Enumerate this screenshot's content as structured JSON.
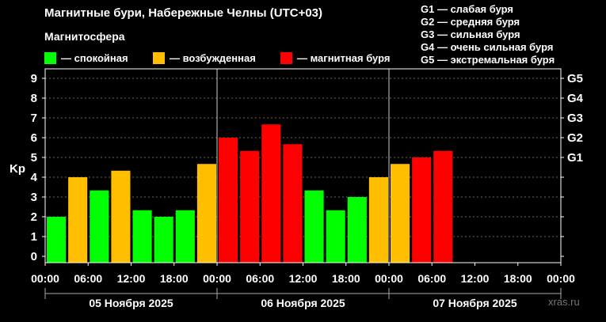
{
  "title": "Магнитные бури, Набережные Челны (UTC+03)",
  "subtitle": "Магнитосфера",
  "legend": [
    {
      "label": "— спокойная",
      "color": "#00ff00"
    },
    {
      "label": "— возбужденная",
      "color": "#ffbf00"
    },
    {
      "label": "— магнитная буря",
      "color": "#ff0000"
    }
  ],
  "g_legend": [
    "G1 — слабая буря",
    "G2 — средняя буря",
    "G3 — сильная буря",
    "G4 — очень сильная буря",
    "G5 — экстремальная буря"
  ],
  "watermark": "xras.ru",
  "chart_data": {
    "type": "bar",
    "ylabel": "Kp",
    "ylim": [
      0,
      9
    ],
    "yticks": [
      "0",
      "1",
      "2",
      "3",
      "4",
      "5",
      "6",
      "7",
      "8",
      "9"
    ],
    "right_ticks": [
      {
        "label": "G1",
        "kp": 5
      },
      {
        "label": "G2",
        "kp": 6
      },
      {
        "label": "G3",
        "kp": 7
      },
      {
        "label": "G4",
        "kp": 8
      },
      {
        "label": "G5",
        "kp": 9
      }
    ],
    "xtick_labels": [
      "00:00",
      "06:00",
      "12:00",
      "18:00",
      "00:00",
      "06:00",
      "12:00",
      "18:00",
      "00:00",
      "06:00",
      "12:00",
      "18:00",
      "00:00"
    ],
    "days": [
      "05 Ноября 2025",
      "06 Ноября 2025",
      "07 Ноября 2025"
    ],
    "grid": true,
    "colors": {
      "quiet": "#00ff00",
      "active": "#ffbf00",
      "storm": "#ff0000"
    },
    "values": [
      2.0,
      4.0,
      3.33,
      4.33,
      2.33,
      2.0,
      2.33,
      4.67,
      6.0,
      5.33,
      6.67,
      5.67,
      3.33,
      2.33,
      3.0,
      4.0,
      4.67,
      5.0,
      5.33
    ],
    "levels": [
      "quiet",
      "active",
      "quiet",
      "active",
      "quiet",
      "quiet",
      "quiet",
      "active",
      "storm",
      "storm",
      "storm",
      "storm",
      "quiet",
      "quiet",
      "quiet",
      "active",
      "active",
      "storm",
      "storm"
    ]
  }
}
